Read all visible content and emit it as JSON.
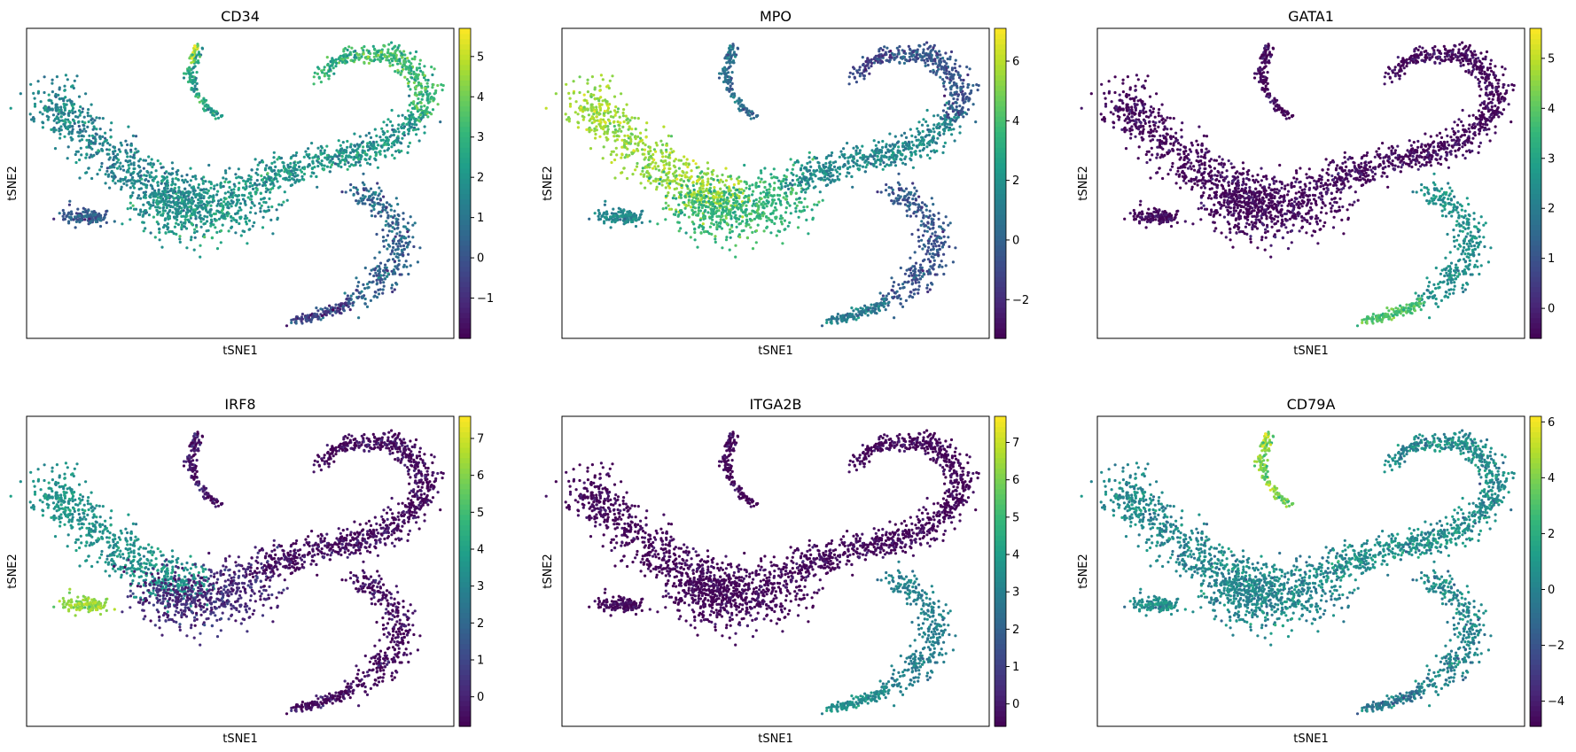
{
  "figure": {
    "colormap": "viridis",
    "colormap_stops": [
      "#440154",
      "#482878",
      "#3e4989",
      "#31688e",
      "#26828e",
      "#1f9e89",
      "#35b779",
      "#6ece58",
      "#b5de2b",
      "#fde725"
    ],
    "background": "#ffffff"
  },
  "chart_data": [
    {
      "type": "scatter",
      "title": "CD34",
      "xlabel": "tSNE1",
      "ylabel": "tSNE2",
      "colorbar": {
        "range": [
          -2.0,
          5.7
        ],
        "ticks": [
          -1,
          0,
          1,
          2,
          3,
          4,
          5
        ],
        "tick_labels": [
          "−1",
          "0",
          "1",
          "2",
          "3",
          "4",
          "5"
        ]
      },
      "expression": {
        "stem": 1.9,
        "upper_arm": 3.2,
        "hook": 3.0,
        "left_arm": 1.5,
        "left_tail": 0.2,
        "center": 2.0,
        "lower_arm": 0.5,
        "lower_tail": -0.5,
        "top_island": 2.5,
        "island_tip": 4.5,
        "variation": 1.2
      }
    },
    {
      "type": "scatter",
      "title": "MPO",
      "xlabel": "tSNE1",
      "ylabel": "tSNE2",
      "colorbar": {
        "range": [
          -3.3,
          7.1
        ],
        "ticks": [
          -2,
          0,
          2,
          4,
          6
        ],
        "tick_labels": [
          "−2",
          "0",
          "2",
          "4",
          "6"
        ]
      },
      "expression": {
        "stem": 1.5,
        "upper_arm": -0.5,
        "hook": -1.0,
        "left_arm": 5.5,
        "left_tail": 1.5,
        "center": 3.5,
        "lower_arm": -0.5,
        "lower_tail": 1.0,
        "top_island": 0.5,
        "island_tip": 0.5,
        "variation": 1.2
      }
    },
    {
      "type": "scatter",
      "title": "GATA1",
      "xlabel": "tSNE1",
      "ylabel": "tSNE2",
      "colorbar": {
        "range": [
          -0.6,
          5.6
        ],
        "ticks": [
          0,
          1,
          2,
          3,
          4,
          5
        ],
        "tick_labels": [
          "0",
          "1",
          "2",
          "3",
          "4",
          "5"
        ]
      },
      "expression": {
        "stem": -0.5,
        "upper_arm": -0.5,
        "hook": -0.4,
        "left_arm": -0.5,
        "left_tail": -0.5,
        "center": -0.5,
        "lower_arm": 2.5,
        "lower_tail": 3.8,
        "top_island": -0.5,
        "island_tip": -0.5,
        "variation": 0.6
      }
    },
    {
      "type": "scatter",
      "title": "IRF8",
      "xlabel": "tSNE1",
      "ylabel": "tSNE2",
      "colorbar": {
        "range": [
          -0.8,
          7.6
        ],
        "ticks": [
          0,
          1,
          2,
          3,
          4,
          5,
          6,
          7
        ],
        "tick_labels": [
          "0",
          "1",
          "2",
          "3",
          "4",
          "5",
          "6",
          "7"
        ]
      },
      "expression": {
        "stem": -0.6,
        "upper_arm": -0.6,
        "hook": -0.6,
        "left_arm": 3.5,
        "left_tail": 6.2,
        "center": 0.2,
        "lower_arm": -0.6,
        "lower_tail": -0.6,
        "top_island": -0.3,
        "island_tip": -0.3,
        "variation": 0.9
      }
    },
    {
      "type": "scatter",
      "title": "ITGA2B",
      "xlabel": "tSNE1",
      "ylabel": "tSNE2",
      "colorbar": {
        "range": [
          -0.6,
          7.7
        ],
        "ticks": [
          0,
          1,
          2,
          3,
          4,
          5,
          6,
          7
        ],
        "tick_labels": [
          "0",
          "1",
          "2",
          "3",
          "4",
          "5",
          "6",
          "7"
        ]
      },
      "expression": {
        "stem": -0.5,
        "upper_arm": -0.5,
        "hook": -0.4,
        "left_arm": -0.5,
        "left_tail": -0.5,
        "center": -0.5,
        "lower_arm": 3.0,
        "lower_tail": 3.5,
        "top_island": -0.5,
        "island_tip": -0.5,
        "variation": 0.7
      }
    },
    {
      "type": "scatter",
      "title": "CD79A",
      "xlabel": "tSNE1",
      "ylabel": "tSNE2",
      "colorbar": {
        "range": [
          -4.9,
          6.2
        ],
        "ticks": [
          -4,
          -2,
          0,
          2,
          4,
          6
        ],
        "tick_labels": [
          "−4",
          "−2",
          "0",
          "2",
          "4",
          "6"
        ]
      },
      "expression": {
        "stem": 0.5,
        "upper_arm": 0.5,
        "hook": 0.5,
        "left_arm": 0.3,
        "left_tail": 0.5,
        "center": 0.2,
        "lower_arm": 0.2,
        "lower_tail": -0.5,
        "top_island": 4.0,
        "island_tip": 4.5,
        "variation": 1.5
      }
    }
  ]
}
